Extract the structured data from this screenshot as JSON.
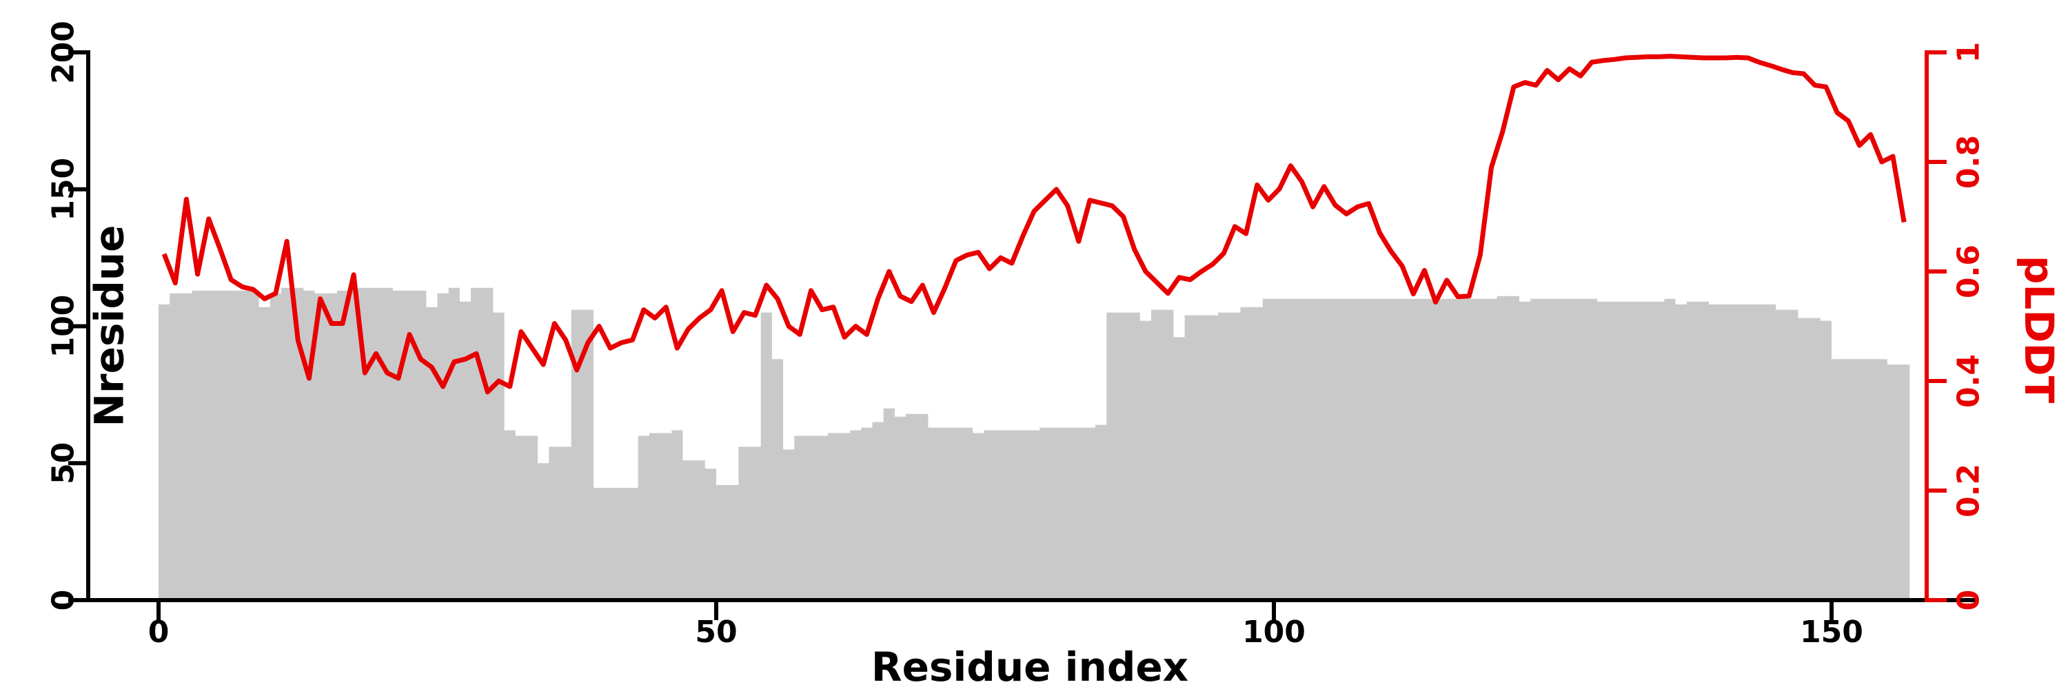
{
  "figure": {
    "background": "#ffffff"
  },
  "chart_data": {
    "type": "bar",
    "subtype": "dual-axis bar+line (MSA depth / pLDDT per residue profile)",
    "title": "",
    "xlabel": "Residue index",
    "x_start": 0,
    "x_step": 1,
    "n_points": 157,
    "x_ticks": [
      0,
      50,
      100,
      150
    ],
    "grid": false,
    "legend": false,
    "left_axis": {
      "label": "Nresidue",
      "ticks": [
        0,
        50,
        100,
        150,
        200
      ],
      "range": [
        0,
        200
      ],
      "color": "#000000"
    },
    "right_axis": {
      "label": "pLDDT",
      "ticks": [
        0,
        0.2,
        0.4,
        0.6,
        0.8,
        1
      ],
      "range": [
        0,
        1
      ],
      "color": "#e80000"
    },
    "series": [
      {
        "name": "Nresidue",
        "type": "bar",
        "axis": "left",
        "color": "#c9c9c9",
        "values": [
          108,
          112,
          112,
          113,
          113,
          113,
          113,
          113,
          113,
          107,
          112,
          114,
          114,
          113,
          112,
          112,
          113,
          114,
          114,
          114,
          114,
          113,
          113,
          113,
          107,
          112,
          114,
          109,
          114,
          114,
          105,
          62,
          60,
          60,
          50,
          56,
          56,
          106,
          106,
          41,
          41,
          41,
          41,
          60,
          61,
          61,
          62,
          51,
          51,
          48,
          42,
          42,
          56,
          56,
          105,
          88,
          55,
          60,
          60,
          60,
          61,
          61,
          62,
          63,
          65,
          70,
          67,
          68,
          68,
          63,
          63,
          63,
          63,
          61,
          62,
          62,
          62,
          62,
          62,
          63,
          63,
          63,
          63,
          63,
          64,
          105,
          105,
          105,
          102,
          106,
          106,
          96,
          104,
          104,
          104,
          105,
          105,
          107,
          107,
          110,
          110,
          110,
          110,
          110,
          110,
          110,
          110,
          110,
          110,
          110,
          110,
          110,
          110,
          110,
          110,
          110,
          110,
          110,
          110,
          110,
          111,
          111,
          109,
          110,
          110,
          110,
          110,
          110,
          110,
          109,
          109,
          109,
          109,
          109,
          109,
          110,
          108,
          109,
          109,
          108,
          108,
          108,
          108,
          108,
          108,
          106,
          106,
          103,
          103,
          102,
          88,
          88,
          88,
          88,
          88,
          86,
          86
        ]
      },
      {
        "name": "pLDDT",
        "type": "line",
        "axis": "right",
        "color": "#e80000",
        "stroke_width": 7,
        "values": [
          0.632,
          0.579,
          0.732,
          0.595,
          0.696,
          0.642,
          0.585,
          0.572,
          0.567,
          0.55,
          0.56,
          0.655,
          0.474,
          0.405,
          0.55,
          0.505,
          0.505,
          0.594,
          0.415,
          0.45,
          0.415,
          0.405,
          0.485,
          0.44,
          0.425,
          0.39,
          0.435,
          0.44,
          0.45,
          0.38,
          0.4,
          0.39,
          0.49,
          0.46,
          0.43,
          0.505,
          0.475,
          0.42,
          0.47,
          0.5,
          0.46,
          0.47,
          0.475,
          0.53,
          0.515,
          0.535,
          0.46,
          0.495,
          0.515,
          0.53,
          0.565,
          0.49,
          0.525,
          0.52,
          0.575,
          0.55,
          0.5,
          0.485,
          0.565,
          0.53,
          0.535,
          0.48,
          0.5,
          0.485,
          0.55,
          0.6,
          0.555,
          0.545,
          0.575,
          0.525,
          0.57,
          0.62,
          0.63,
          0.635,
          0.605,
          0.625,
          0.615,
          0.665,
          0.71,
          0.73,
          0.75,
          0.72,
          0.655,
          0.73,
          0.725,
          0.72,
          0.7,
          0.64,
          0.6,
          0.58,
          0.56,
          0.589,
          0.585,
          0.6,
          0.613,
          0.633,
          0.682,
          0.669,
          0.758,
          0.73,
          0.751,
          0.793,
          0.764,
          0.718,
          0.755,
          0.721,
          0.705,
          0.718,
          0.724,
          0.67,
          0.637,
          0.61,
          0.559,
          0.602,
          0.544,
          0.584,
          0.554,
          0.555,
          0.63,
          0.79,
          0.855,
          0.937,
          0.945,
          0.94,
          0.967,
          0.95,
          0.97,
          0.957,
          0.982,
          0.985,
          0.987,
          0.99,
          0.991,
          0.992,
          0.992,
          0.993,
          0.992,
          0.991,
          0.99,
          0.99,
          0.99,
          0.991,
          0.99,
          0.982,
          0.976,
          0.969,
          0.963,
          0.961,
          0.94,
          0.937,
          0.89,
          0.875,
          0.83,
          0.85,
          0.8,
          0.81,
          0.69
        ]
      }
    ]
  }
}
